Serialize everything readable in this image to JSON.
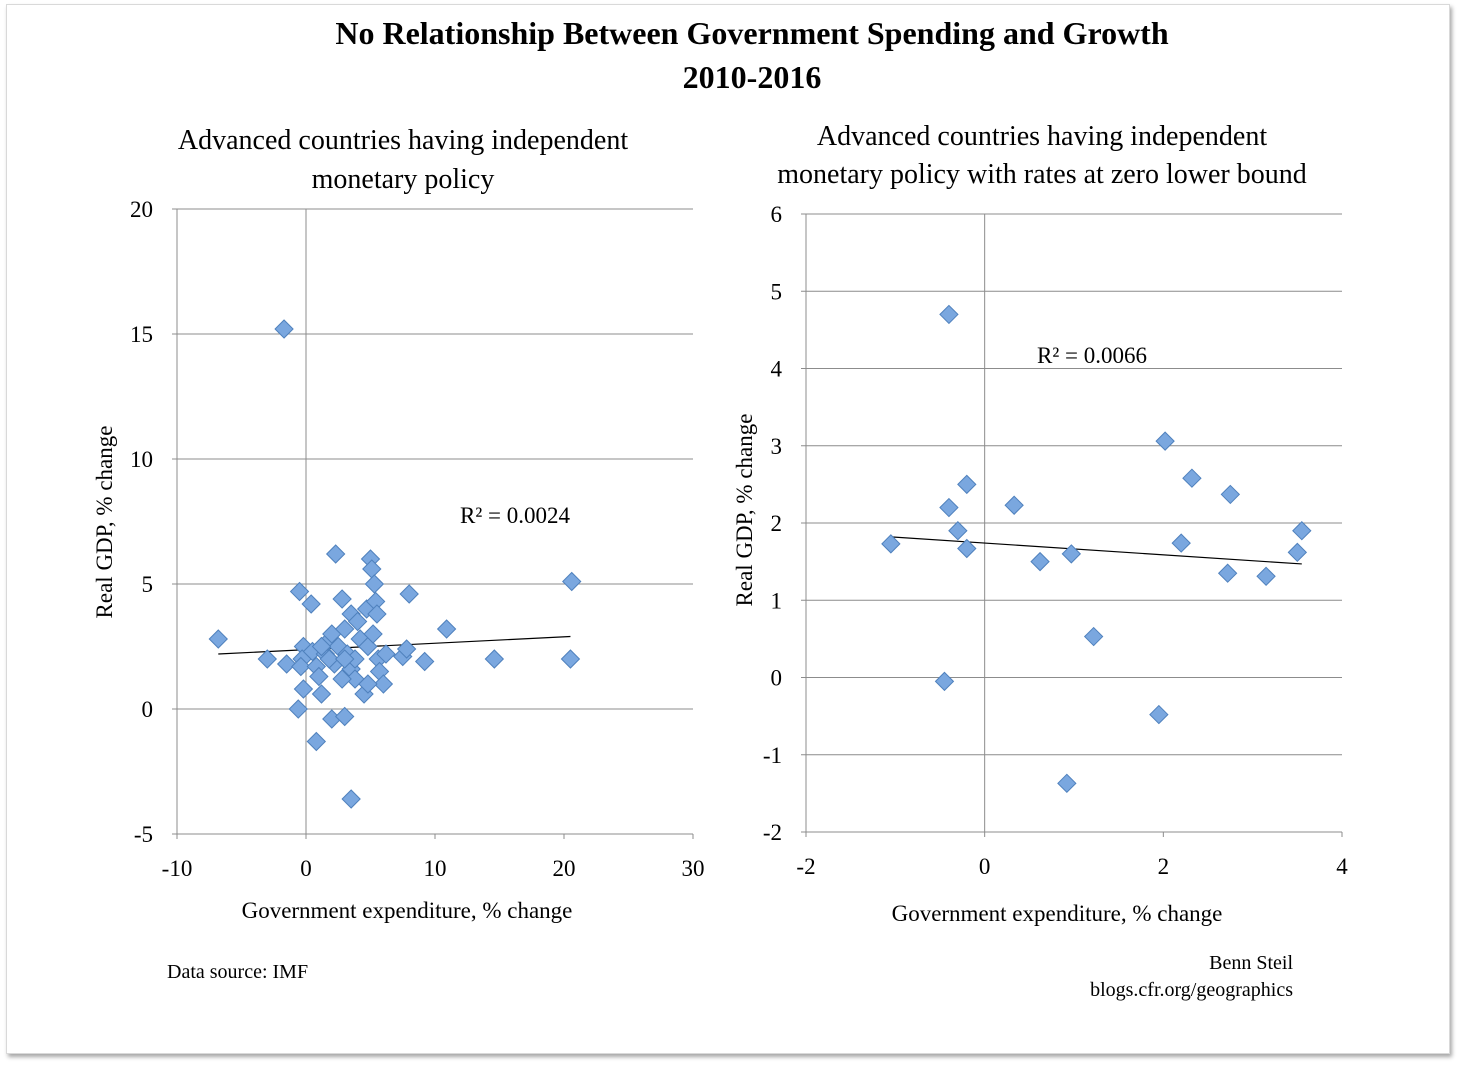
{
  "figure": {
    "title_line1": "No Relationship Between Government Spending and Growth",
    "title_line2": "2010-2016",
    "source_note": "Data source: IMF",
    "credit_name": "Benn Steil",
    "credit_url": "blogs.cfr.org/geographics",
    "marker_color": "#4f81bd",
    "marker_fill": "#7aa7df"
  },
  "chart_data": [
    {
      "type": "scatter",
      "title_line1": "Advanced countries having independent",
      "title_line2": "monetary policy",
      "xlabel": "Government expenditure, % change",
      "ylabel": "Real GDP, % change",
      "xlim": [
        -10,
        30
      ],
      "ylim": [
        -5,
        20
      ],
      "x_ticks": [
        -10,
        0,
        10,
        20,
        30
      ],
      "y_ticks": [
        -5,
        0,
        5,
        10,
        15,
        20
      ],
      "grid": "horizontal",
      "r_squared_label": "R² = 0.0024",
      "trendline": {
        "x": [
          -6.8,
          20.5
        ],
        "y": [
          2.2,
          2.9
        ]
      },
      "points": [
        [
          -1.7,
          15.2
        ],
        [
          -6.8,
          2.8
        ],
        [
          -3.0,
          2.0
        ],
        [
          -1.5,
          1.8
        ],
        [
          -0.5,
          4.7
        ],
        [
          0.4,
          4.2
        ],
        [
          -0.2,
          2.5
        ],
        [
          -0.3,
          2.0
        ],
        [
          -0.4,
          1.7
        ],
        [
          -0.2,
          0.8
        ],
        [
          -0.6,
          0.0
        ],
        [
          0.8,
          -1.3
        ],
        [
          0.5,
          2.3
        ],
        [
          0.8,
          1.7
        ],
        [
          1.0,
          1.3
        ],
        [
          1.2,
          0.6
        ],
        [
          1.5,
          2.2
        ],
        [
          1.7,
          2.7
        ],
        [
          2.0,
          3.0
        ],
        [
          2.2,
          1.8
        ],
        [
          2.5,
          2.5
        ],
        [
          2.3,
          6.2
        ],
        [
          2.0,
          -0.4
        ],
        [
          3.0,
          -0.3
        ],
        [
          2.8,
          4.4
        ],
        [
          3.0,
          3.2
        ],
        [
          3.2,
          2.2
        ],
        [
          3.5,
          3.8
        ],
        [
          3.5,
          1.6
        ],
        [
          3.8,
          1.2
        ],
        [
          4.0,
          3.5
        ],
        [
          4.2,
          2.8
        ],
        [
          4.5,
          0.6
        ],
        [
          4.7,
          4.0
        ],
        [
          4.8,
          2.5
        ],
        [
          5.0,
          6.0
        ],
        [
          5.1,
          5.6
        ],
        [
          5.2,
          3.0
        ],
        [
          5.3,
          5.0
        ],
        [
          5.4,
          4.3
        ],
        [
          5.5,
          3.8
        ],
        [
          5.6,
          2.0
        ],
        [
          5.7,
          1.5
        ],
        [
          6.0,
          1.0
        ],
        [
          6.2,
          2.2
        ],
        [
          7.5,
          2.1
        ],
        [
          7.8,
          2.4
        ],
        [
          8.0,
          4.6
        ],
        [
          9.2,
          1.9
        ],
        [
          10.9,
          3.2
        ],
        [
          14.6,
          2.0
        ],
        [
          20.6,
          5.1
        ],
        [
          20.5,
          2.0
        ],
        [
          3.5,
          -3.6
        ],
        [
          1.2,
          2.5
        ],
        [
          3.8,
          2.0
        ],
        [
          4.8,
          1.0
        ],
        [
          2.8,
          1.2
        ],
        [
          1.8,
          2.0
        ],
        [
          3.0,
          2.0
        ]
      ]
    },
    {
      "type": "scatter",
      "title_line1": "Advanced countries having independent",
      "title_line2": "monetary policy with rates at zero lower bound",
      "xlabel": "Government expenditure, % change",
      "ylabel": "Real GDP, % change",
      "xlim": [
        -2,
        4
      ],
      "ylim": [
        -2,
        6
      ],
      "x_ticks": [
        -2,
        0,
        2,
        4
      ],
      "y_ticks": [
        -2,
        -1,
        0,
        1,
        2,
        3,
        4,
        5,
        6
      ],
      "grid": "horizontal",
      "r_squared_label": "R² = 0.0066",
      "trendline": {
        "x": [
          -1.05,
          3.55
        ],
        "y": [
          1.82,
          1.47
        ]
      },
      "points": [
        [
          -1.05,
          1.73
        ],
        [
          -0.4,
          4.7
        ],
        [
          -0.4,
          2.2
        ],
        [
          -0.3,
          1.9
        ],
        [
          -0.2,
          2.5
        ],
        [
          -0.2,
          1.67
        ],
        [
          -0.45,
          -0.05
        ],
        [
          0.33,
          2.23
        ],
        [
          0.62,
          1.5
        ],
        [
          0.97,
          1.6
        ],
        [
          1.22,
          0.53
        ],
        [
          0.92,
          -1.37
        ],
        [
          1.95,
          -0.48
        ],
        [
          2.02,
          3.06
        ],
        [
          2.2,
          1.74
        ],
        [
          2.32,
          2.58
        ],
        [
          2.72,
          1.35
        ],
        [
          2.75,
          2.37
        ],
        [
          3.15,
          1.31
        ],
        [
          3.5,
          1.62
        ],
        [
          3.55,
          1.9
        ]
      ]
    }
  ]
}
